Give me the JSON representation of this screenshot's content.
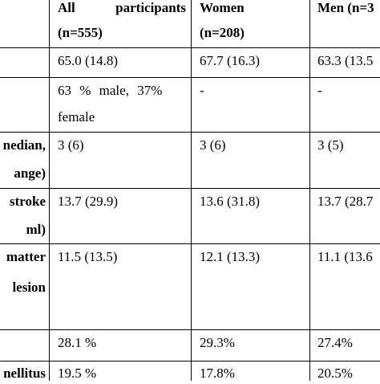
{
  "table": {
    "headers": {
      "all_line1_a": "All",
      "all_line1_b": "participants",
      "all_line2": "(n=555)",
      "women_line1": "Women",
      "women_line2": "(n=208)",
      "men_line1": "Men (n=3"
    },
    "rows": [
      {
        "label_lines": [],
        "all": [
          "65.0 (14.8)"
        ],
        "women": [
          "67.7 (16.3)"
        ],
        "men": [
          "63.3 (13.5"
        ]
      },
      {
        "label_lines": [],
        "all": [
          "63 % male, 37%",
          "female"
        ],
        "women": [
          "-"
        ],
        "men": [
          "-"
        ]
      },
      {
        "label_lines": [
          "nedian,",
          "ange)"
        ],
        "all": [
          "3 (6)"
        ],
        "women": [
          "3 (6)"
        ],
        "men": [
          "3 (5)"
        ]
      },
      {
        "label_lines": [
          "stroke",
          "ml)"
        ],
        "all": [
          "13.7 (29.9)"
        ],
        "women": [
          "13.6 (31.8)"
        ],
        "men": [
          "13.7 (28.7"
        ]
      },
      {
        "label_lines": [
          "matter",
          "lesion"
        ],
        "all": [
          "11.5 (13.5)"
        ],
        "women": [
          "12.1 (13.3)"
        ],
        "men": [
          "11.1 (13.6"
        ]
      },
      {
        "label_lines": [],
        "all": [
          "28.1 %"
        ],
        "women": [
          "29.3%"
        ],
        "men": [
          "27.4%"
        ]
      },
      {
        "label_lines": [
          "nellitus"
        ],
        "all": [
          "19.5 %"
        ],
        "women": [
          "17.8%"
        ],
        "men": [
          "20.5%"
        ]
      }
    ]
  }
}
